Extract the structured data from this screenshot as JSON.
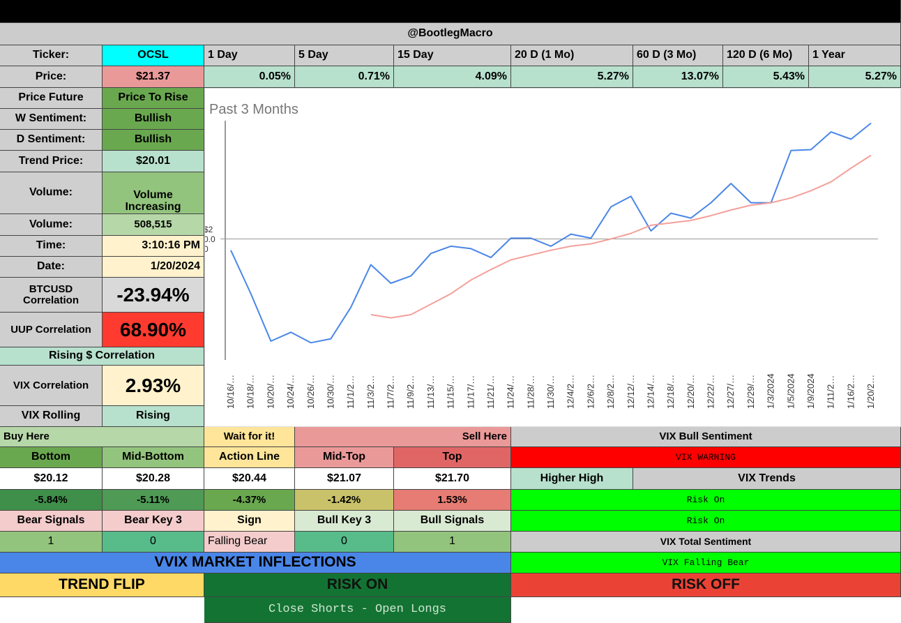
{
  "header": {
    "handle": "@BootlegMacro"
  },
  "left": {
    "rows": [
      {
        "label": "Ticker:",
        "value": "OCSL"
      },
      {
        "label": "Price:",
        "value": "$21.37"
      },
      {
        "label": "Price Future",
        "value": "Price To Rise"
      },
      {
        "label": "W Sentiment:",
        "value": "Bullish"
      },
      {
        "label": "D Sentiment:",
        "value": "Bullish"
      },
      {
        "label": "Trend Price:",
        "value": "$20.01"
      },
      {
        "label": "Volume:",
        "value": "Volume Increasing"
      },
      {
        "label": "Volume:",
        "value": "508,515"
      },
      {
        "label": "Time:",
        "value": "3:10:16 PM"
      },
      {
        "label": "Date:",
        "value": "1/20/2024"
      },
      {
        "label": "BTCUSD Correlation",
        "value": "-23.94%"
      },
      {
        "label": "UUP Correlation",
        "value": "68.90%"
      },
      {
        "label": "Rising $ Correlation"
      },
      {
        "label": "VIX Correlation",
        "value": "2.93%"
      },
      {
        "label": "VIX Rolling",
        "value": "Rising"
      }
    ]
  },
  "periods": {
    "labels": [
      "1 Day",
      "5 Day",
      "15 Day",
      "20 D (1 Mo)",
      "60 D (3 Mo)",
      "120 D (6 Mo)",
      "1 Year"
    ],
    "changes": [
      "0.05%",
      "0.71%",
      "4.09%",
      "5.27%",
      "13.07%",
      "5.43%",
      "5.27%"
    ]
  },
  "levels": {
    "buy_here": "Buy Here",
    "wait": "Wait for it!",
    "sell_here": "Sell Here",
    "names": [
      "Bottom",
      "Mid-Bottom",
      "Action Line",
      "Mid-Top",
      "Top"
    ],
    "prices": [
      "$20.12",
      "$20.28",
      "$20.44",
      "$21.07",
      "$21.70"
    ],
    "changes": [
      "-5.84%",
      "-5.11%",
      "-4.37%",
      "-1.42%",
      "1.53%"
    ]
  },
  "signals": {
    "names": [
      "Bear Signals",
      "Bear Key 3",
      "Sign",
      "Bull Key 3",
      "Bull Signals"
    ],
    "values": [
      "1",
      "0",
      "Falling Bear",
      "0",
      "1"
    ]
  },
  "vix": {
    "bull_sentiment": "VIX Bull Sentiment",
    "warning": "VIX WARNING",
    "higher_high": "Higher High",
    "trends": "VIX Trends",
    "risk_1": "Risk On",
    "risk_2": "Risk On",
    "total": "VIX Total Sentiment",
    "falling": "VIX Falling Bear"
  },
  "inflections": {
    "title": "VVIX MARKET INFLECTIONS",
    "trend_flip": "TREND FLIP",
    "risk_on": "RISK ON",
    "risk_off": "RISK OFF",
    "action": "Close Shorts - Open Longs"
  },
  "chart_data": {
    "type": "line",
    "title": "Past 3 Months",
    "categories": [
      "10/16/…",
      "10/18/…",
      "10/20/…",
      "10/24/…",
      "10/26/…",
      "10/30/…",
      "11/1/2…",
      "11/3/2…",
      "11/7/2…",
      "11/9/2…",
      "11/13/…",
      "11/15/…",
      "11/17/…",
      "11/21/…",
      "11/24/…",
      "11/28/…",
      "11/30/…",
      "12/4/2…",
      "12/6/2…",
      "12/8/2…",
      "12/12/…",
      "12/14/…",
      "12/18/…",
      "12/20/…",
      "12/22/…",
      "12/27/…",
      "12/29/…",
      "1/3/2024",
      "1/5/2024",
      "1/9/2024",
      "1/11/2…",
      "1/16/2…",
      "1/20/2…"
    ],
    "series": [
      {
        "color": "#4a86e8",
        "values": [
          19.79,
          19.25,
          18.66,
          18.77,
          18.64,
          18.69,
          19.08,
          19.61,
          19.38,
          19.47,
          19.75,
          19.84,
          19.81,
          19.7,
          19.94,
          19.94,
          19.84,
          19.99,
          19.94,
          20.33,
          20.46,
          20.03,
          20.25,
          20.19,
          20.38,
          20.62,
          20.38,
          20.38,
          21.03,
          21.04,
          21.26,
          21.17,
          21.37
        ]
      },
      {
        "color": "#f4a09a",
        "values": [
          null,
          null,
          null,
          null,
          null,
          null,
          null,
          18.99,
          18.95,
          18.99,
          19.12,
          19.25,
          19.42,
          19.55,
          19.67,
          19.73,
          19.79,
          19.84,
          19.87,
          19.93,
          20.0,
          20.1,
          20.13,
          20.16,
          20.22,
          20.29,
          20.35,
          20.38,
          20.44,
          20.53,
          20.64,
          20.81,
          20.97
        ]
      }
    ],
    "y_axis_labels": [
      "$2",
      "0.0",
      "0"
    ],
    "reference_line": 19.93,
    "ylim": [
      18.4,
      21.4
    ]
  }
}
